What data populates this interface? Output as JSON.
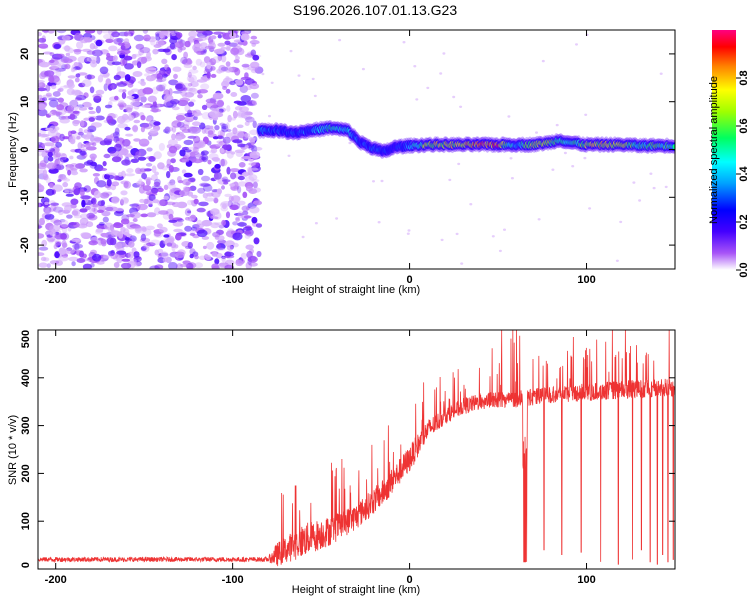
{
  "title": "S196.2026.107.01.13.G23",
  "chart_data": [
    {
      "type": "heatmap",
      "xlabel": "Height of straight line (km)",
      "ylabel": "Frequency (Hz)",
      "xlim": [
        -210,
        150
      ],
      "ylim": [
        -25,
        25
      ],
      "xticks": [
        {
          "label": "-200",
          "value": -200
        },
        {
          "label": "-100",
          "value": -100
        },
        {
          "label": "0",
          "value": 0
        },
        {
          "label": "100",
          "value": 100
        }
      ],
      "yticks": [
        {
          "label": "20",
          "value": 20
        },
        {
          "label": "10",
          "value": 10
        },
        {
          "label": "0",
          "value": 0
        },
        {
          "label": "-10",
          "value": -10
        },
        {
          "label": "-20",
          "value": -20
        }
      ],
      "noise_region_x": [
        -210,
        -85
      ],
      "ridge": {
        "x": [
          -85,
          -75,
          -65,
          -55,
          -45,
          -35,
          -28,
          -22,
          -15,
          -8,
          0,
          10,
          20,
          30,
          40,
          50,
          60,
          70,
          80,
          85,
          90,
          100,
          110,
          120,
          130,
          140,
          150
        ],
        "freq": [
          4,
          4,
          3.5,
          4,
          4.5,
          4,
          1.5,
          0.5,
          -0.5,
          0.5,
          0.8,
          1,
          1,
          1,
          1,
          1,
          1,
          1,
          1.5,
          2,
          1.5,
          1,
          1,
          1,
          0.8,
          0.8,
          0.8
        ],
        "amplitude": [
          0.35,
          0.3,
          0.3,
          0.35,
          0.5,
          0.45,
          0.3,
          0.3,
          0.3,
          0.25,
          0.35,
          0.7,
          0.75,
          0.7,
          0.95,
          0.9,
          0.35,
          0.75,
          0.6,
          0.5,
          0.45,
          0.7,
          0.75,
          0.7,
          0.5,
          0.6,
          0.5
        ]
      },
      "colorbar": {
        "label": "Normalized spectral amplitude",
        "range": [
          0,
          1
        ],
        "ticks": [
          {
            "label": "0.0",
            "value": 0
          },
          {
            "label": "0.2",
            "value": 0.2
          },
          {
            "label": "0.4",
            "value": 0.4
          },
          {
            "label": "0.6",
            "value": 0.6
          },
          {
            "label": "0.8",
            "value": 0.8
          }
        ]
      }
    },
    {
      "type": "line",
      "xlabel": "Height of straight line (km)",
      "ylabel": "SNR (10 * v/v)",
      "xlim": [
        -210,
        150
      ],
      "ylim": [
        0,
        500
      ],
      "color": "#ee3333",
      "xticks": [
        {
          "label": "-200",
          "value": -200
        },
        {
          "label": "-100",
          "value": -100
        },
        {
          "label": "0",
          "value": 0
        },
        {
          "label": "100",
          "value": 100
        }
      ],
      "yticks": [
        {
          "label": "500",
          "value": 500
        },
        {
          "label": "400",
          "value": 400
        },
        {
          "label": "300",
          "value": 300
        },
        {
          "label": "200",
          "value": 200
        },
        {
          "label": "100",
          "value": 100
        },
        {
          "label": "0",
          "value": 0
        }
      ],
      "trend": {
        "x": [
          -210,
          -80,
          -75,
          -60,
          -45,
          -30,
          -15,
          0,
          10,
          20,
          30,
          40,
          50,
          60,
          70,
          80,
          100,
          120,
          150
        ],
        "y": [
          20,
          20,
          30,
          60,
          80,
          110,
          160,
          230,
          290,
          320,
          340,
          350,
          355,
          355,
          360,
          365,
          370,
          375,
          380
        ]
      },
      "noise_amplitude": {
        "x": [
          -210,
          -80,
          -75,
          -60,
          -30,
          0,
          20,
          60,
          150
        ],
        "y": [
          10,
          10,
          50,
          70,
          55,
          55,
          35,
          35,
          40
        ]
      },
      "dropouts": [
        {
          "x": 65,
          "y": 15
        },
        {
          "x": 76,
          "y": 40
        },
        {
          "x": 86,
          "y": 30
        },
        {
          "x": 97,
          "y": 35
        },
        {
          "x": 108,
          "y": 15
        },
        {
          "x": 118,
          "y": 10
        },
        {
          "x": 126,
          "y": 20
        },
        {
          "x": 131,
          "y": 40
        },
        {
          "x": 136,
          "y": 15
        },
        {
          "x": 140,
          "y": 10
        },
        {
          "x": 143,
          "y": 30
        },
        {
          "x": 146,
          "y": 15
        },
        {
          "x": 149,
          "y": 20
        }
      ],
      "spike_max": 500
    }
  ]
}
